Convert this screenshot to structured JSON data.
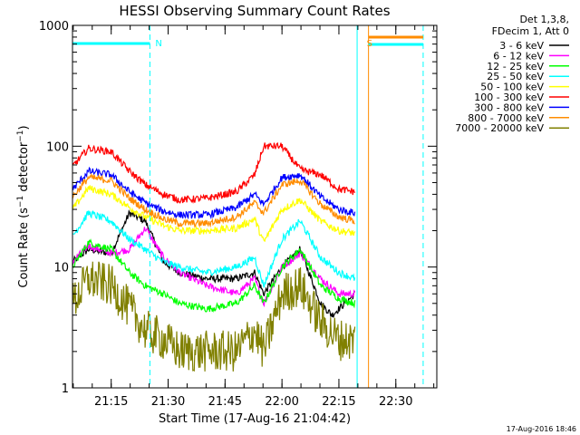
{
  "chart_data": {
    "type": "line",
    "title": "HESSI Observing Summary Count Rates",
    "xlabel": "Start Time (17-Aug-16 21:04:42)",
    "ylabel": "Count Rate (s⁻¹ detector⁻¹)",
    "ylabel_parts": {
      "pre": "Count Rate (s",
      "sup1": "−1",
      "mid": " detector",
      "sup2": "−1",
      "post": ")"
    },
    "yscale": "log",
    "ylim": [
      1,
      1000
    ],
    "xlim_minutes": [
      21.08,
      22.68
    ],
    "x_start": "21:04:42",
    "x_end": "22:41",
    "x_ticks": [
      "21:15",
      "21:30",
      "21:45",
      "22:00",
      "22:15",
      "22:30"
    ],
    "y_ticks": [
      "1",
      "10",
      "100",
      "1000"
    ],
    "legend_header": [
      "Det 1,3,8,",
      "FDecim 1, Att 0"
    ],
    "legend_position": "top-right, outside plot",
    "series": [
      {
        "name": "3 - 6 keV",
        "color": "#000000",
        "points": [
          [
            21.08,
            11
          ],
          [
            21.15,
            14
          ],
          [
            21.25,
            13
          ],
          [
            21.33,
            28
          ],
          [
            21.4,
            24
          ],
          [
            21.48,
            11
          ],
          [
            21.55,
            9
          ],
          [
            21.67,
            8
          ],
          [
            21.8,
            8
          ],
          [
            21.88,
            9
          ],
          [
            21.92,
            6
          ],
          [
            22.0,
            10
          ],
          [
            22.08,
            14
          ],
          [
            22.17,
            5
          ],
          [
            22.22,
            4
          ],
          [
            22.32,
            6
          ]
        ]
      },
      {
        "name": "6 - 12 keV",
        "color": "#ff00ff",
        "points": [
          [
            21.08,
            11
          ],
          [
            21.15,
            15
          ],
          [
            21.25,
            13
          ],
          [
            21.33,
            14
          ],
          [
            21.4,
            21
          ],
          [
            21.48,
            12
          ],
          [
            21.55,
            9
          ],
          [
            21.67,
            7
          ],
          [
            21.8,
            6
          ],
          [
            21.88,
            8
          ],
          [
            21.92,
            5
          ],
          [
            22.0,
            10
          ],
          [
            22.08,
            13
          ],
          [
            22.17,
            8
          ],
          [
            22.25,
            6
          ],
          [
            22.32,
            6
          ]
        ]
      },
      {
        "name": "12 - 25 keV",
        "color": "#00ff00",
        "points": [
          [
            21.08,
            10
          ],
          [
            21.15,
            16
          ],
          [
            21.25,
            14
          ],
          [
            21.33,
            9
          ],
          [
            21.4,
            7
          ],
          [
            21.48,
            6
          ],
          [
            21.55,
            5
          ],
          [
            21.67,
            4.5
          ],
          [
            21.8,
            5
          ],
          [
            21.88,
            7
          ],
          [
            21.92,
            5
          ],
          [
            22.0,
            10
          ],
          [
            22.08,
            14
          ],
          [
            22.17,
            7
          ],
          [
            22.25,
            5.5
          ],
          [
            22.32,
            5
          ]
        ]
      },
      {
        "name": "25 - 50 keV",
        "color": "#00ffff",
        "points": [
          [
            21.08,
            18
          ],
          [
            21.15,
            28
          ],
          [
            21.25,
            24
          ],
          [
            21.33,
            17
          ],
          [
            21.4,
            14
          ],
          [
            21.48,
            11
          ],
          [
            21.55,
            10
          ],
          [
            21.67,
            9
          ],
          [
            21.8,
            10
          ],
          [
            21.88,
            12
          ],
          [
            21.92,
            7
          ],
          [
            22.0,
            17
          ],
          [
            22.08,
            24
          ],
          [
            22.17,
            12
          ],
          [
            22.25,
            9
          ],
          [
            22.32,
            8
          ]
        ]
      },
      {
        "name": "50 - 100 keV",
        "color": "#ffff00",
        "points": [
          [
            21.08,
            30
          ],
          [
            21.15,
            45
          ],
          [
            21.25,
            40
          ],
          [
            21.33,
            31
          ],
          [
            21.4,
            26
          ],
          [
            21.48,
            22
          ],
          [
            21.55,
            20
          ],
          [
            21.67,
            20
          ],
          [
            21.8,
            21
          ],
          [
            21.88,
            25
          ],
          [
            21.92,
            16
          ],
          [
            22.0,
            30
          ],
          [
            22.08,
            36
          ],
          [
            22.17,
            24
          ],
          [
            22.25,
            20
          ],
          [
            22.32,
            19
          ]
        ]
      },
      {
        "name": "100 - 300 keV",
        "color": "#ff0000",
        "points": [
          [
            21.08,
            68
          ],
          [
            21.15,
            96
          ],
          [
            21.25,
            90
          ],
          [
            21.33,
            62
          ],
          [
            21.4,
            48
          ],
          [
            21.48,
            40
          ],
          [
            21.55,
            36
          ],
          [
            21.67,
            37
          ],
          [
            21.8,
            42
          ],
          [
            21.88,
            58
          ],
          [
            21.92,
            100
          ],
          [
            22.0,
            100
          ],
          [
            22.08,
            64
          ],
          [
            22.17,
            58
          ],
          [
            22.25,
            44
          ],
          [
            22.32,
            42
          ]
        ]
      },
      {
        "name": "300 - 800 keV",
        "color": "#0000ff",
        "points": [
          [
            21.08,
            44
          ],
          [
            21.15,
            62
          ],
          [
            21.25,
            58
          ],
          [
            21.33,
            42
          ],
          [
            21.4,
            34
          ],
          [
            21.48,
            29
          ],
          [
            21.55,
            27
          ],
          [
            21.67,
            27
          ],
          [
            21.8,
            31
          ],
          [
            21.88,
            40
          ],
          [
            21.92,
            33
          ],
          [
            22.0,
            55
          ],
          [
            22.08,
            58
          ],
          [
            22.17,
            38
          ],
          [
            22.25,
            30
          ],
          [
            22.32,
            28
          ]
        ]
      },
      {
        "name": "800 - 7000 keV",
        "color": "#ff8c00",
        "points": [
          [
            21.08,
            38
          ],
          [
            21.15,
            55
          ],
          [
            21.25,
            52
          ],
          [
            21.33,
            37
          ],
          [
            21.4,
            30
          ],
          [
            21.48,
            25
          ],
          [
            21.55,
            23
          ],
          [
            21.67,
            23
          ],
          [
            21.8,
            26
          ],
          [
            21.88,
            34
          ],
          [
            21.92,
            28
          ],
          [
            22.0,
            48
          ],
          [
            22.08,
            52
          ],
          [
            22.17,
            33
          ],
          [
            22.25,
            26
          ],
          [
            22.32,
            24
          ]
        ]
      },
      {
        "name": "7000 - 20000 keV",
        "color": "#808000",
        "points": [
          [
            21.08,
            5
          ],
          [
            21.15,
            8
          ],
          [
            21.25,
            7
          ],
          [
            21.33,
            4.5
          ],
          [
            21.4,
            3
          ],
          [
            21.48,
            2.5
          ],
          [
            21.55,
            2
          ],
          [
            21.67,
            2
          ],
          [
            21.8,
            2
          ],
          [
            21.88,
            3
          ],
          [
            21.92,
            2
          ],
          [
            22.0,
            6
          ],
          [
            22.08,
            7
          ],
          [
            22.17,
            3.5
          ],
          [
            22.25,
            2.5
          ],
          [
            22.32,
            2.5
          ]
        ]
      }
    ],
    "markers": [
      {
        "label": "N",
        "color": "#00ffff",
        "x_start": 21.08,
        "x_end": 21.42
      },
      {
        "label": "S",
        "color": "#ff8c00",
        "x_start": 22.38,
        "x_end": 22.62
      }
    ],
    "cyan_vlines_minutes": [
      21.08,
      21.42,
      22.33,
      22.62
    ],
    "orange_vlines_minutes": [
      22.38
    ],
    "timestamp": "17-Aug-2016 18:46"
  }
}
